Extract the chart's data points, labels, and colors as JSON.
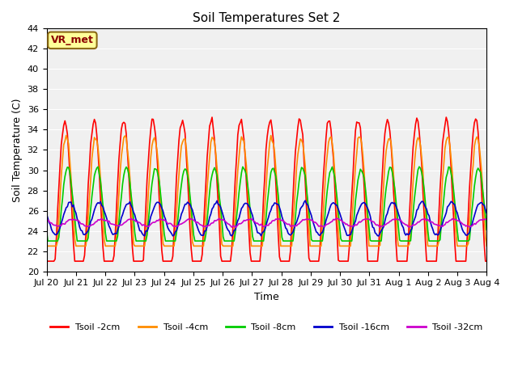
{
  "title": "Soil Temperatures Set 2",
  "xlabel": "Time",
  "ylabel": "Soil Temperature (C)",
  "ylim": [
    20,
    44
  ],
  "yticks": [
    20,
    22,
    24,
    26,
    28,
    30,
    32,
    34,
    36,
    38,
    40,
    42,
    44
  ],
  "x_tick_labels": [
    "Jul 20",
    "Jul 21",
    "Jul 22",
    "Jul 23",
    "Jul 24",
    "Jul 25",
    "Jul 26",
    "Jul 27",
    "Jul 28",
    "Jul 29",
    "Jul 30",
    "Jul 31",
    "Aug 1",
    "Aug 2",
    "Aug 3",
    "Aug 4"
  ],
  "n_days": 15,
  "points_per_day": 24,
  "series": {
    "Tsoil -2cm": {
      "color": "#ff0000",
      "lw": 1.2
    },
    "Tsoil -4cm": {
      "color": "#ff8c00",
      "lw": 1.2
    },
    "Tsoil -8cm": {
      "color": "#00cc00",
      "lw": 1.2
    },
    "Tsoil -16cm": {
      "color": "#0000cc",
      "lw": 1.2
    },
    "Tsoil -32cm": {
      "color": "#cc00cc",
      "lw": 1.2
    }
  },
  "annotation_text": "VR_met",
  "plot_bg_color": "#f0f0f0"
}
